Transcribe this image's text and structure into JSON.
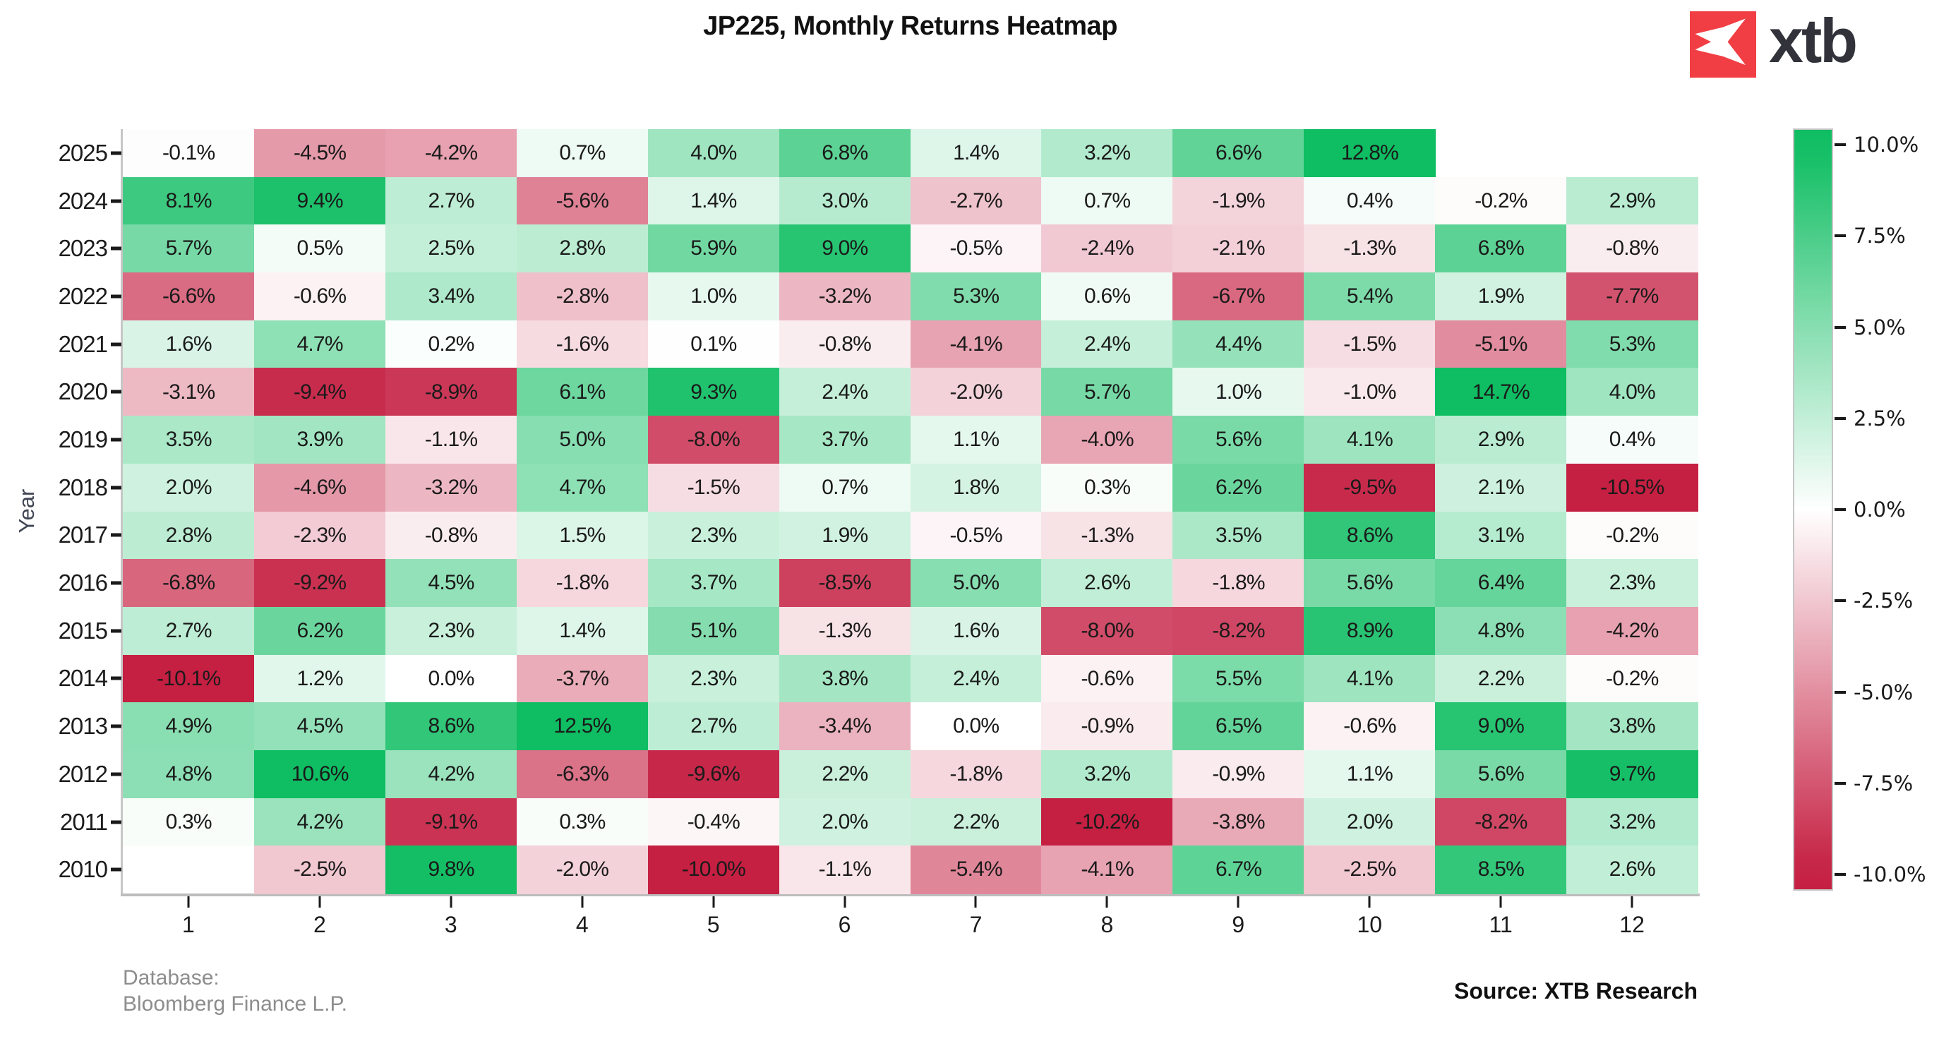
{
  "title": "JP225, Monthly Returns Heatmap",
  "logo": {
    "text": "xtb",
    "mark_color": "#f13e44",
    "text_color": "#32333a"
  },
  "axis": {
    "ylabel": "Year"
  },
  "footer": {
    "database_label": "Database:",
    "database_name": "Bloomberg Finance L.P.",
    "source": "Source: XTB Research"
  },
  "chart_data": {
    "type": "heatmap",
    "title": "JP225, Monthly Returns Heatmap",
    "xlabel": "",
    "ylabel": "Year",
    "unit": "%",
    "x_ticks": [
      "1",
      "2",
      "3",
      "4",
      "5",
      "6",
      "7",
      "8",
      "9",
      "10",
      "11",
      "12"
    ],
    "y_ticks": [
      "2025",
      "2024",
      "2023",
      "2022",
      "2021",
      "2020",
      "2019",
      "2018",
      "2017",
      "2016",
      "2015",
      "2014",
      "2013",
      "2012",
      "2011",
      "2010"
    ],
    "colorbar": {
      "tick_labels": [
        "10.0%",
        "7.5%",
        "5.0%",
        "2.5%",
        "0.0%",
        "-2.5%",
        "-5.0%",
        "-7.5%",
        "-10.0%"
      ],
      "tick_values": [
        10,
        7.5,
        5,
        2.5,
        0,
        -2.5,
        -5,
        -7.5,
        -10
      ],
      "vmin": -10,
      "vmax": 10,
      "pos_color": "#0fbd62",
      "mid_color": "#ffffff",
      "neg_color": "#c51f42",
      "position": "right"
    },
    "series": [
      {
        "year": "2025",
        "values": [
          -0.1,
          -4.5,
          -4.2,
          0.7,
          4.0,
          6.8,
          1.4,
          3.2,
          6.6,
          12.8,
          null,
          null
        ]
      },
      {
        "year": "2024",
        "values": [
          8.1,
          9.4,
          2.7,
          -5.6,
          1.4,
          3.0,
          -2.7,
          0.7,
          -1.9,
          0.4,
          -0.2,
          2.9
        ]
      },
      {
        "year": "2023",
        "values": [
          5.7,
          0.5,
          2.5,
          2.8,
          5.9,
          9.0,
          -0.5,
          -2.4,
          -2.1,
          -1.3,
          6.8,
          -0.8
        ]
      },
      {
        "year": "2022",
        "values": [
          -6.6,
          -0.6,
          3.4,
          -2.8,
          1.0,
          -3.2,
          5.3,
          0.6,
          -6.7,
          5.4,
          1.9,
          -7.7
        ]
      },
      {
        "year": "2021",
        "values": [
          1.6,
          4.7,
          0.2,
          -1.6,
          0.1,
          -0.8,
          -4.1,
          2.4,
          4.4,
          -1.5,
          -5.1,
          5.3
        ]
      },
      {
        "year": "2020",
        "values": [
          -3.1,
          -9.4,
          -8.9,
          6.1,
          9.3,
          2.4,
          -2.0,
          5.7,
          1.0,
          -1.0,
          14.7,
          4.0
        ]
      },
      {
        "year": "2019",
        "values": [
          3.5,
          3.9,
          -1.1,
          5.0,
          -8.0,
          3.7,
          1.1,
          -4.0,
          5.6,
          4.1,
          2.9,
          0.4
        ]
      },
      {
        "year": "2018",
        "values": [
          2.0,
          -4.6,
          -3.2,
          4.7,
          -1.5,
          0.7,
          1.8,
          0.3,
          6.2,
          -9.5,
          2.1,
          -10.5
        ]
      },
      {
        "year": "2017",
        "values": [
          2.8,
          -2.3,
          -0.8,
          1.5,
          2.3,
          1.9,
          -0.5,
          -1.3,
          3.5,
          8.6,
          3.1,
          -0.2
        ]
      },
      {
        "year": "2016",
        "values": [
          -6.8,
          -9.2,
          4.5,
          -1.8,
          3.7,
          -8.5,
          5.0,
          2.6,
          -1.8,
          5.6,
          6.4,
          2.3
        ]
      },
      {
        "year": "2015",
        "values": [
          2.7,
          6.2,
          2.3,
          1.4,
          5.1,
          -1.3,
          1.6,
          -8.0,
          -8.2,
          8.9,
          4.8,
          -4.2
        ]
      },
      {
        "year": "2014",
        "values": [
          -10.1,
          1.2,
          0.0,
          -3.7,
          2.3,
          3.8,
          2.4,
          -0.6,
          5.5,
          4.1,
          2.2,
          -0.2
        ]
      },
      {
        "year": "2013",
        "values": [
          4.9,
          4.5,
          8.6,
          12.5,
          2.7,
          -3.4,
          0.0,
          -0.9,
          6.5,
          -0.6,
          9.0,
          3.8
        ]
      },
      {
        "year": "2012",
        "values": [
          4.8,
          10.6,
          4.2,
          -6.3,
          -9.6,
          2.2,
          -1.8,
          3.2,
          -0.9,
          1.1,
          5.6,
          9.7
        ]
      },
      {
        "year": "2011",
        "values": [
          0.3,
          4.2,
          -9.1,
          0.3,
          -0.4,
          2.0,
          2.2,
          -10.2,
          -3.8,
          2.0,
          -8.2,
          3.2
        ]
      },
      {
        "year": "2010",
        "values": [
          null,
          -2.5,
          9.8,
          -2.0,
          -10.0,
          -1.1,
          -5.4,
          -4.1,
          6.7,
          -2.5,
          8.5,
          2.6
        ]
      }
    ]
  }
}
